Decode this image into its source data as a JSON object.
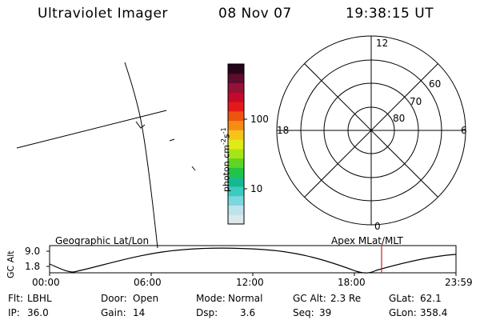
{
  "header": {
    "instrument": "Ultraviolet Imager",
    "date": "08 Nov 07",
    "time": "19:38:15 UT"
  },
  "colorbar": {
    "unit_label": "photon cm",
    "exp1": "-2",
    "unit_mid": "s",
    "exp2": "-1",
    "ticks": [
      "100",
      "10"
    ],
    "colors": [
      "#dce7ec",
      "#bfe3ea",
      "#7cd6df",
      "#3ccbc0",
      "#16b98f",
      "#21c34b",
      "#5fd421",
      "#a7e616",
      "#e0ea16",
      "#f6c418",
      "#f68c14",
      "#ee5410",
      "#e41a1a",
      "#c4092b",
      "#941138",
      "#5e0b2c",
      "#26051a"
    ]
  },
  "polar": {
    "labels": {
      "top": "12",
      "bottom": "0",
      "left": "18",
      "right": "6",
      "lat60": "60",
      "lat70": "70",
      "lat80": "80"
    }
  },
  "map_labels": {
    "geo": "Geographic Lat/Lon",
    "apex": "Apex MLat/MLT"
  },
  "altitude_plot": {
    "ylabel": "GC Alt",
    "y_ticks": [
      "9.0",
      "1.8"
    ],
    "x_ticks": [
      "00:00",
      "06:00",
      "12:00",
      "18:00",
      "23:59"
    ],
    "current_time_marker_color": "#cc2222"
  },
  "status": {
    "flt_label": "Flt:",
    "flt_value": "LBHL",
    "ip_label": "IP:",
    "ip_value": "36.0",
    "door_label": "Door:",
    "door_value": "Open",
    "gain_label": "Gain:",
    "gain_value": "14",
    "mode_label": "Mode:",
    "mode_value": "Normal",
    "dsp_label": "Dsp:",
    "dsp_value": "3.6",
    "gcalt_label": "GC Alt:",
    "gcalt_value": "2.3 Re",
    "seq_label": "Seq:",
    "seq_value": "39",
    "glat_label": "GLat:",
    "glat_value": "62.1",
    "glon_label": "GLon:",
    "glon_value": "358.4"
  }
}
